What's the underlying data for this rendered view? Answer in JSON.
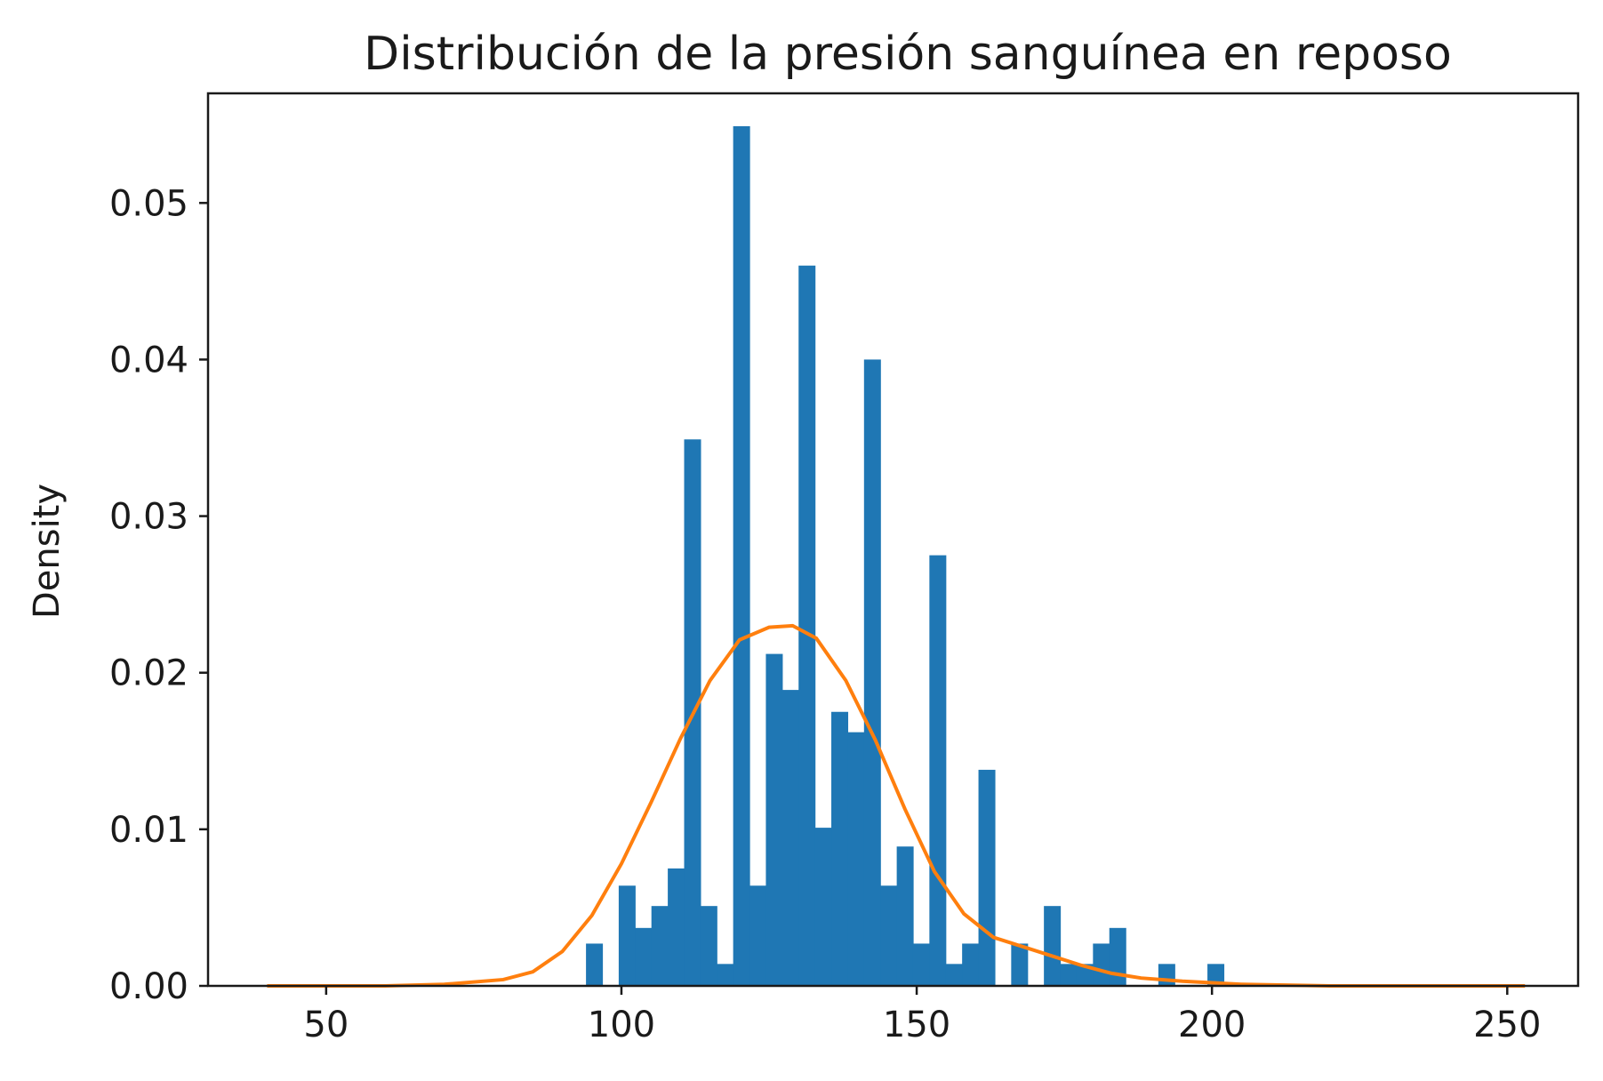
{
  "chart_data": {
    "type": "bar",
    "title": "Distribución de la presión sanguínea en reposo",
    "xlabel": "",
    "ylabel": "Density",
    "xlim": [
      30,
      262
    ],
    "ylim": [
      0,
      0.057
    ],
    "xticks": [
      50,
      100,
      150,
      200,
      250
    ],
    "xtick_labels": [
      "50",
      "100",
      "150",
      "200",
      "250"
    ],
    "yticks": [
      0,
      0.01,
      0.02,
      0.03,
      0.04,
      0.05
    ],
    "ytick_labels": [
      "0.00",
      "0.01",
      "0.02",
      "0.03",
      "0.04",
      "0.05"
    ],
    "grid": false,
    "bar_color": "#1f77b4",
    "line_color": "#ff7f0e",
    "histogram": {
      "bin_width": 2.77,
      "bins": [
        {
          "x0": 94.0,
          "density": 0.0027
        },
        {
          "x0": 96.77,
          "density": 0.0
        },
        {
          "x0": 99.54,
          "density": 0.0064
        },
        {
          "x0": 102.31,
          "density": 0.0037
        },
        {
          "x0": 105.08,
          "density": 0.0051
        },
        {
          "x0": 107.85,
          "density": 0.0075
        },
        {
          "x0": 110.62,
          "density": 0.0349
        },
        {
          "x0": 113.38,
          "density": 0.0051
        },
        {
          "x0": 116.15,
          "density": 0.0014
        },
        {
          "x0": 118.92,
          "density": 0.0549
        },
        {
          "x0": 121.69,
          "density": 0.0064
        },
        {
          "x0": 124.46,
          "density": 0.0212
        },
        {
          "x0": 127.23,
          "density": 0.0189
        },
        {
          "x0": 130.0,
          "density": 0.046
        },
        {
          "x0": 132.77,
          "density": 0.0101
        },
        {
          "x0": 135.54,
          "density": 0.0175
        },
        {
          "x0": 138.31,
          "density": 0.0162
        },
        {
          "x0": 141.08,
          "density": 0.04
        },
        {
          "x0": 143.85,
          "density": 0.0064
        },
        {
          "x0": 146.62,
          "density": 0.0089
        },
        {
          "x0": 149.38,
          "density": 0.0027
        },
        {
          "x0": 152.15,
          "density": 0.0275
        },
        {
          "x0": 154.92,
          "density": 0.0014
        },
        {
          "x0": 157.69,
          "density": 0.0027
        },
        {
          "x0": 160.46,
          "density": 0.0138
        },
        {
          "x0": 163.23,
          "density": 0.0
        },
        {
          "x0": 166.0,
          "density": 0.0027
        },
        {
          "x0": 168.77,
          "density": 0.0
        },
        {
          "x0": 171.54,
          "density": 0.0051
        },
        {
          "x0": 174.31,
          "density": 0.0014
        },
        {
          "x0": 177.08,
          "density": 0.0014
        },
        {
          "x0": 179.85,
          "density": 0.0027
        },
        {
          "x0": 182.62,
          "density": 0.0037
        },
        {
          "x0": 185.38,
          "density": 0.0
        },
        {
          "x0": 188.15,
          "density": 0.0
        },
        {
          "x0": 190.92,
          "density": 0.0014
        },
        {
          "x0": 193.69,
          "density": 0.0
        },
        {
          "x0": 196.46,
          "density": 0.0
        },
        {
          "x0": 199.23,
          "density": 0.0014
        }
      ]
    },
    "kde": {
      "x": [
        40,
        60,
        70,
        80,
        85,
        90,
        95,
        100,
        105,
        110,
        115,
        120,
        125,
        129,
        133,
        138,
        143,
        148,
        153,
        158,
        163,
        168,
        173,
        178,
        183,
        188,
        195,
        205,
        220,
        253
      ],
      "y": [
        0.0,
        0.0,
        0.0001,
        0.0004,
        0.0009,
        0.0022,
        0.0045,
        0.0078,
        0.0117,
        0.0158,
        0.0195,
        0.0221,
        0.0229,
        0.023,
        0.0222,
        0.0195,
        0.0157,
        0.0113,
        0.0073,
        0.0046,
        0.0031,
        0.0025,
        0.0019,
        0.0013,
        0.0008,
        0.0005,
        0.0003,
        0.0001,
        0.0,
        0.0
      ]
    }
  }
}
